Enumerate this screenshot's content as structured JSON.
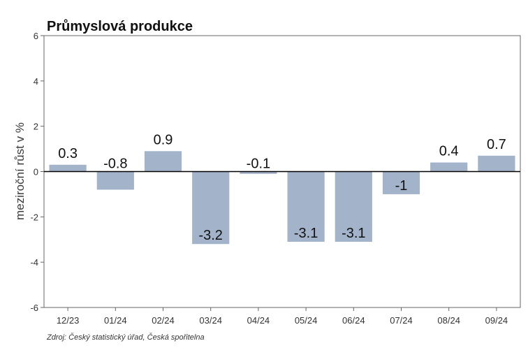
{
  "chart_data": {
    "type": "bar",
    "title": "Průmyslová produkce",
    "xlabel": "",
    "ylabel": "meziroční růst v %",
    "categories": [
      "12/23",
      "01/24",
      "02/24",
      "03/24",
      "04/24",
      "05/24",
      "06/24",
      "07/24",
      "08/24",
      "09/24"
    ],
    "values": [
      0.3,
      -0.8,
      0.9,
      -3.2,
      -0.1,
      -3.1,
      -3.1,
      -1,
      0.4,
      0.7
    ],
    "data_labels": [
      "0.3",
      "-0.8",
      "0.9",
      "-3.2",
      "-0.1",
      "-3.1",
      "-3.1",
      "-1",
      "0.4",
      "0.7"
    ],
    "ylim": [
      -6,
      6
    ],
    "yticks": [
      -6,
      -4,
      -2,
      0,
      2,
      4,
      6
    ],
    "grid": false,
    "source": "Zdroj: Český statistický úřad, Česká spořitelna",
    "colors": {
      "bar": "#a3b3c9",
      "zero_line": "#000000",
      "axis": "#666666",
      "background": "#ffffff"
    }
  }
}
